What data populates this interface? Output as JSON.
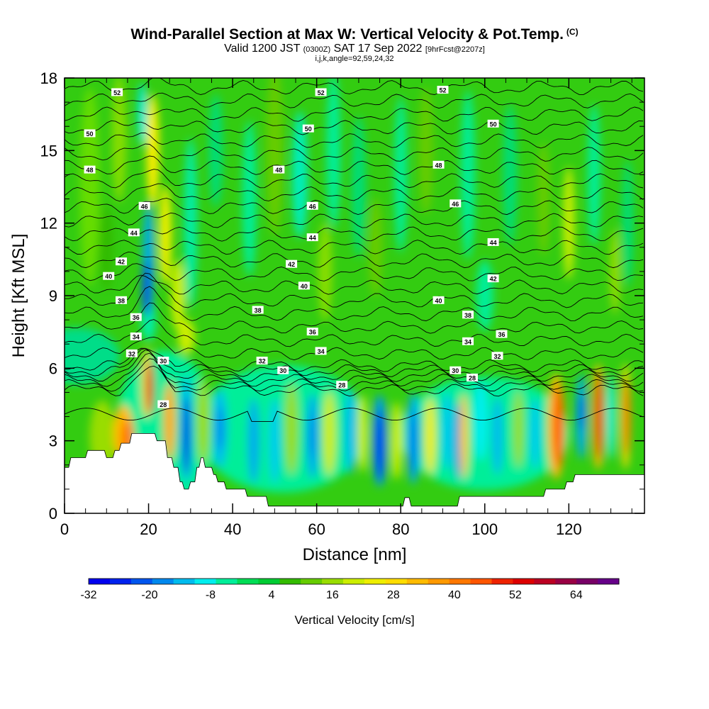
{
  "title": {
    "main": "Wind-Parallel Section at Max W: Vertical Velocity & Pot.Temp.",
    "copyright": "(C)",
    "valid_prefix": "Valid 1200 JST",
    "valid_utc": "(0300Z)",
    "valid_date": "SAT 17 Sep 2022",
    "forecast": "[9hrFcst@2207z]",
    "indices": "i,j,k,angle=92,59,24,32"
  },
  "chart_data": {
    "type": "heatmap",
    "xlabel": "Distance [nm]",
    "ylabel": "Height [Kft MSL]",
    "xlim": [
      0,
      138
    ],
    "ylim": [
      0,
      18
    ],
    "x_ticks": [
      "0",
      "20",
      "40",
      "60",
      "80",
      "100",
      "120"
    ],
    "y_ticks": [
      "0",
      "3",
      "6",
      "9",
      "12",
      "15",
      "18"
    ],
    "colorbar": {
      "title": "Vertical Velocity [cm/s]",
      "ticks": [
        "-32",
        "-20",
        "-8",
        "4",
        "16",
        "28",
        "40",
        "52",
        "64"
      ],
      "colors": [
        "#0000ee",
        "#0022ee",
        "#0055ee",
        "#0088ee",
        "#00bbee",
        "#00eeee",
        "#00ee99",
        "#00dd55",
        "#00cc33",
        "#33bb00",
        "#66cc00",
        "#99dd00",
        "#ccee00",
        "#eeee00",
        "#ffdd00",
        "#ffbb00",
        "#ff9900",
        "#ff7700",
        "#ff5500",
        "#ee2200",
        "#dd0000",
        "#bb0022",
        "#990044",
        "#770066",
        "#660088"
      ]
    },
    "theta_contours": {
      "units": "potential temperature",
      "labels": [
        {
          "v": "52",
          "x": 12.5,
          "y": 17.4
        },
        {
          "v": "52",
          "x": 61,
          "y": 17.4
        },
        {
          "v": "52",
          "x": 90,
          "y": 17.5
        },
        {
          "v": "50",
          "x": 6,
          "y": 15.7
        },
        {
          "v": "50",
          "x": 58,
          "y": 15.9
        },
        {
          "v": "50",
          "x": 102,
          "y": 16.1
        },
        {
          "v": "48",
          "x": 6,
          "y": 14.2
        },
        {
          "v": "48",
          "x": 51,
          "y": 14.2
        },
        {
          "v": "48",
          "x": 89,
          "y": 14.4
        },
        {
          "v": "46",
          "x": 19,
          "y": 12.7
        },
        {
          "v": "46",
          "x": 59,
          "y": 12.7
        },
        {
          "v": "46",
          "x": 93,
          "y": 12.8
        },
        {
          "v": "44",
          "x": 16.5,
          "y": 11.6
        },
        {
          "v": "44",
          "x": 59,
          "y": 11.4
        },
        {
          "v": "44",
          "x": 102,
          "y": 11.2
        },
        {
          "v": "42",
          "x": 13.5,
          "y": 10.4
        },
        {
          "v": "42",
          "x": 54,
          "y": 10.3
        },
        {
          "v": "42",
          "x": 102,
          "y": 9.7
        },
        {
          "v": "40",
          "x": 10.5,
          "y": 9.8
        },
        {
          "v": "40",
          "x": 57,
          "y": 9.4
        },
        {
          "v": "40",
          "x": 89,
          "y": 8.8
        },
        {
          "v": "38",
          "x": 13.5,
          "y": 8.8
        },
        {
          "v": "38",
          "x": 46,
          "y": 8.4
        },
        {
          "v": "38",
          "x": 96,
          "y": 8.2
        },
        {
          "v": "36",
          "x": 17,
          "y": 8.1
        },
        {
          "v": "36",
          "x": 59,
          "y": 7.5
        },
        {
          "v": "36",
          "x": 104,
          "y": 7.4
        },
        {
          "v": "34",
          "x": 17,
          "y": 7.3
        },
        {
          "v": "34",
          "x": 61,
          "y": 6.7
        },
        {
          "v": "34",
          "x": 96,
          "y": 7.1
        },
        {
          "v": "32",
          "x": 16,
          "y": 6.6
        },
        {
          "v": "32",
          "x": 47,
          "y": 6.3
        },
        {
          "v": "32",
          "x": 103,
          "y": 6.5
        },
        {
          "v": "30",
          "x": 23.5,
          "y": 6.3
        },
        {
          "v": "30",
          "x": 52,
          "y": 5.9
        },
        {
          "v": "30",
          "x": 93,
          "y": 5.9
        },
        {
          "v": "28",
          "x": 23.5,
          "y": 4.5
        },
        {
          "v": "28",
          "x": 66,
          "y": 5.3
        },
        {
          "v": "28",
          "x": 97,
          "y": 5.6
        }
      ]
    },
    "terrain_kft": [
      [
        0,
        1.9
      ],
      [
        1,
        1.9
      ],
      [
        1.5,
        2.3
      ],
      [
        5,
        2.3
      ],
      [
        5.5,
        2.6
      ],
      [
        9.5,
        2.6
      ],
      [
        10,
        2.3
      ],
      [
        11.5,
        2.3
      ],
      [
        12,
        2.6
      ],
      [
        13,
        2.6
      ],
      [
        13.5,
        2.9
      ],
      [
        15.5,
        2.9
      ],
      [
        16,
        3.3
      ],
      [
        21.5,
        3.3
      ],
      [
        22,
        3.0
      ],
      [
        24,
        3.0
      ],
      [
        24.5,
        2.3
      ],
      [
        25.5,
        2.3
      ],
      [
        26,
        1.9
      ],
      [
        27,
        1.9
      ],
      [
        27.5,
        1.3
      ],
      [
        28,
        1.3
      ],
      [
        28.5,
        1.0
      ],
      [
        29.5,
        1.0
      ],
      [
        30,
        1.3
      ],
      [
        31,
        1.3
      ],
      [
        31.5,
        1.9
      ],
      [
        32,
        1.9
      ],
      [
        32.5,
        2.3
      ],
      [
        33,
        2.3
      ],
      [
        33.5,
        1.9
      ],
      [
        35,
        1.9
      ],
      [
        35.5,
        1.6
      ],
      [
        36,
        1.6
      ],
      [
        36.5,
        1.3
      ],
      [
        38,
        1.3
      ],
      [
        38.5,
        1.0
      ],
      [
        43,
        1.0
      ],
      [
        43.5,
        0.7
      ],
      [
        48,
        0.7
      ],
      [
        48.5,
        0.3
      ],
      [
        80.5,
        0.3
      ],
      [
        81,
        0.65
      ],
      [
        82,
        0.65
      ],
      [
        82.5,
        0.3
      ],
      [
        93.5,
        0.3
      ],
      [
        94,
        0.7
      ],
      [
        114,
        0.7
      ],
      [
        114.5,
        1.0
      ],
      [
        119,
        1.0
      ],
      [
        119.5,
        1.3
      ],
      [
        121,
        1.3
      ],
      [
        121.5,
        1.6
      ],
      [
        138,
        1.6
      ]
    ]
  }
}
